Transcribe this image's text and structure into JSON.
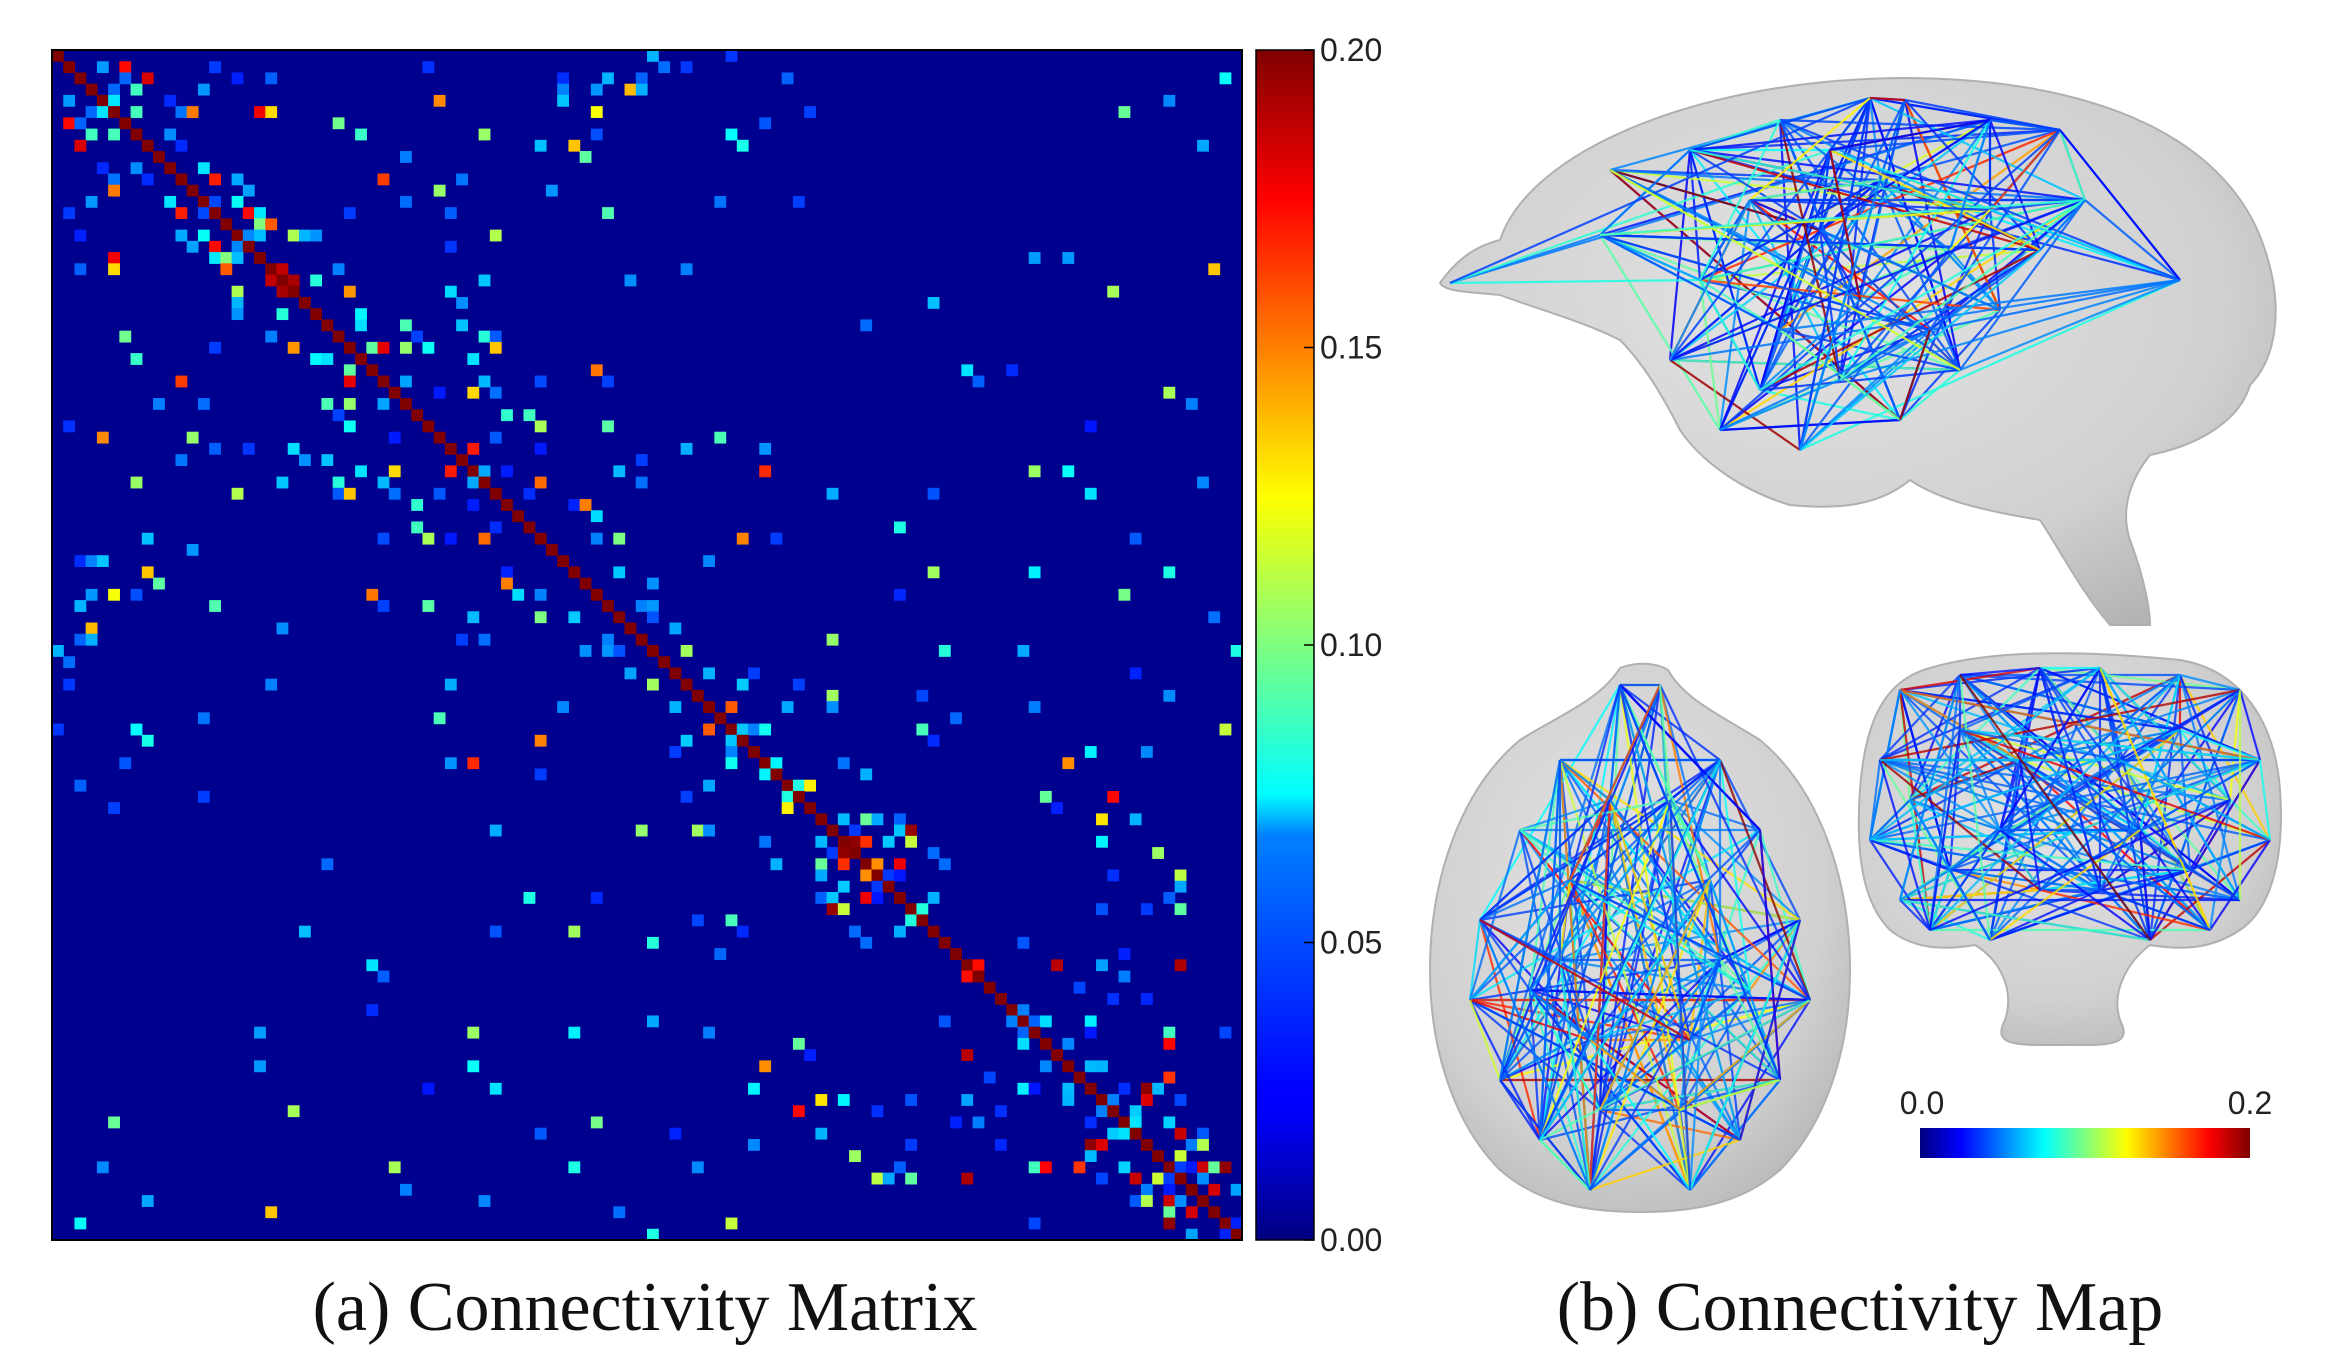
{
  "figure": {
    "caption_a": "(a) Connectivity Matrix",
    "caption_b": "(b) Connectivity Map"
  },
  "chart_data": [
    {
      "type": "heatmap",
      "title": "(a) Connectivity Matrix",
      "size": 106,
      "colormap": "jet",
      "value_range": [
        0.0,
        0.2
      ],
      "colorbar_ticks": [
        "0.20",
        "0.15",
        "0.10",
        "0.05",
        "0.00"
      ],
      "colorbar_tick_values": [
        0.2,
        0.15,
        0.1,
        0.05,
        0.0
      ],
      "diagonal_value": 0.2,
      "block_structure": [
        [
          0,
          53
        ],
        [
          53,
          106
        ]
      ],
      "notes": "Symmetric 106x106 connectivity matrix; strong diagonal; most off-diagonal entries near 0.00 with sparse 0.05-0.20 values concentrated inside the two hemispheric blocks."
    },
    {
      "type": "other",
      "title": "(b) Connectivity Map",
      "views": [
        "sagittal",
        "axial",
        "coronal"
      ],
      "colorbar_labels": [
        "0.0",
        "0.2"
      ],
      "value_range": [
        0.0,
        0.2
      ],
      "colormap": "jet"
    }
  ]
}
